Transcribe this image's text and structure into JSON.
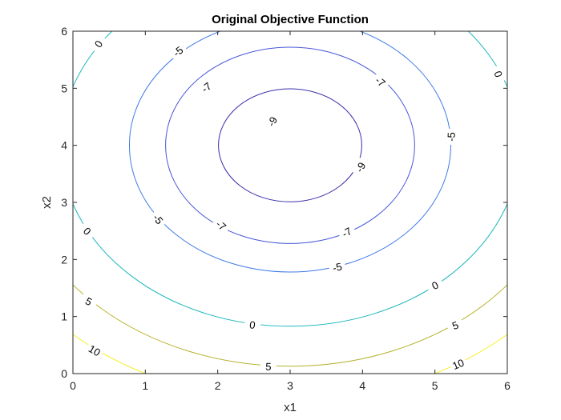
{
  "chart_data": {
    "type": "contour",
    "title": "Original Objective Function",
    "xlabel": "x1",
    "ylabel": "x2",
    "xlim": [
      0,
      6
    ],
    "ylim": [
      0,
      6
    ],
    "xticks": [
      "0",
      "1",
      "2",
      "3",
      "4",
      "5",
      "6"
    ],
    "yticks": [
      "0",
      "1",
      "2",
      "3",
      "4",
      "5",
      "6"
    ],
    "grid": false,
    "center": {
      "x1": 3,
      "x2": 4
    },
    "levels": [
      {
        "value": -9,
        "label": "-9",
        "color": "#3b2fa8",
        "rx": 0.99,
        "ry": 0.99
      },
      {
        "value": -7,
        "label": "-7",
        "color": "#4757d8",
        "rx": 1.72,
        "ry": 1.72
      },
      {
        "value": -5,
        "label": "-5",
        "color": "#3f7be6",
        "rx": 2.22,
        "ry": 2.22
      },
      {
        "value": 0,
        "label": "0",
        "color": "#1cb7bd",
        "rx": 3.17,
        "ry": 3.17
      },
      {
        "value": 5,
        "label": "5",
        "color": "#b5b12a",
        "rx": 3.87,
        "ry": 3.87
      },
      {
        "value": 10,
        "label": "10",
        "color": "#f4ee16",
        "rx": 4.47,
        "ry": 4.47
      }
    ],
    "contour_labels": [
      {
        "level": "-9",
        "x1": 2.75,
        "x2": 4.42,
        "angle": -62
      },
      {
        "level": "-9",
        "x1": 3.97,
        "x2": 3.62,
        "angle": -62
      },
      {
        "level": "-7",
        "x1": 1.84,
        "x2": 5.02,
        "angle": -38
      },
      {
        "level": "-7",
        "x1": 4.25,
        "x2": 5.12,
        "angle": 40
      },
      {
        "level": "-7",
        "x1": 2.05,
        "x2": 2.6,
        "angle": 40
      },
      {
        "level": "-7",
        "x1": 3.78,
        "x2": 2.48,
        "angle": -30
      },
      {
        "level": "-5",
        "x1": 1.45,
        "x2": 5.65,
        "angle": -38
      },
      {
        "level": "-5",
        "x1": 5.22,
        "x2": 4.15,
        "angle": -88
      },
      {
        "level": "-5",
        "x1": 1.18,
        "x2": 2.71,
        "angle": 52
      },
      {
        "level": "-5",
        "x1": 3.65,
        "x2": 1.87,
        "angle": -12
      },
      {
        "level": "0",
        "x1": 0.35,
        "x2": 5.78,
        "angle": -55
      },
      {
        "level": "0",
        "x1": 5.88,
        "x2": 5.25,
        "angle": 70
      },
      {
        "level": "0",
        "x1": 0.2,
        "x2": 2.5,
        "angle": 45
      },
      {
        "level": "0",
        "x1": 2.48,
        "x2": 0.86,
        "angle": 8
      },
      {
        "level": "0",
        "x1": 5.0,
        "x2": 1.55,
        "angle": -28
      },
      {
        "level": "5",
        "x1": 0.22,
        "x2": 1.27,
        "angle": 28
      },
      {
        "level": "5",
        "x1": 2.7,
        "x2": 0.13,
        "angle": 2
      },
      {
        "level": "5",
        "x1": 5.28,
        "x2": 0.85,
        "angle": -22
      },
      {
        "level": "10",
        "x1": 0.3,
        "x2": 0.41,
        "angle": 30
      },
      {
        "level": "10",
        "x1": 5.32,
        "x2": 0.17,
        "angle": -22
      }
    ]
  }
}
